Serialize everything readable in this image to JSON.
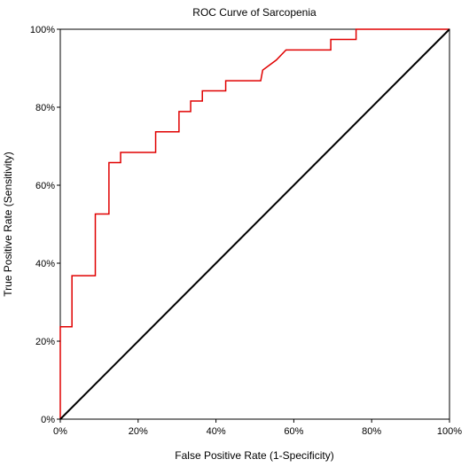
{
  "chart_data": {
    "type": "line",
    "title": "ROC Curve of Sarcopenia",
    "xlabel": "False Positive Rate (1-Specificity)",
    "ylabel": "True Positive Rate (Sensitivity)",
    "xlim": [
      0,
      100
    ],
    "ylim": [
      0,
      100
    ],
    "x_ticks": [
      0,
      20,
      40,
      60,
      80,
      100
    ],
    "y_ticks": [
      0,
      20,
      40,
      60,
      80,
      100
    ],
    "x_tick_labels": [
      "0%",
      "20%",
      "40%",
      "60%",
      "80%",
      "100%"
    ],
    "y_tick_labels": [
      "0%",
      "20%",
      "40%",
      "60%",
      "80%",
      "100%"
    ],
    "grid": false,
    "series": [
      {
        "color": "#e00000",
        "x": [
          0,
          0,
          3,
          3,
          9,
          9,
          12.5,
          12.5,
          15.5,
          15.5,
          24.5,
          24.5,
          30.5,
          30.5,
          33.5,
          33.5,
          36.5,
          36.5,
          42.5,
          42.5,
          51.5,
          52,
          55.5,
          55.5,
          58,
          58,
          69.5,
          69.5,
          76,
          76,
          100
        ],
        "y": [
          0,
          23.7,
          23.7,
          36.8,
          36.8,
          52.6,
          52.6,
          65.8,
          65.8,
          68.4,
          68.4,
          73.7,
          73.7,
          78.9,
          78.9,
          81.6,
          81.6,
          84.2,
          84.2,
          86.8,
          86.8,
          89.5,
          92.1,
          92.1,
          94.7,
          94.7,
          94.7,
          97.4,
          97.4,
          100,
          100
        ]
      },
      {
        "color": "#000000",
        "x": [
          0,
          100
        ],
        "y": [
          0,
          100
        ]
      }
    ]
  }
}
